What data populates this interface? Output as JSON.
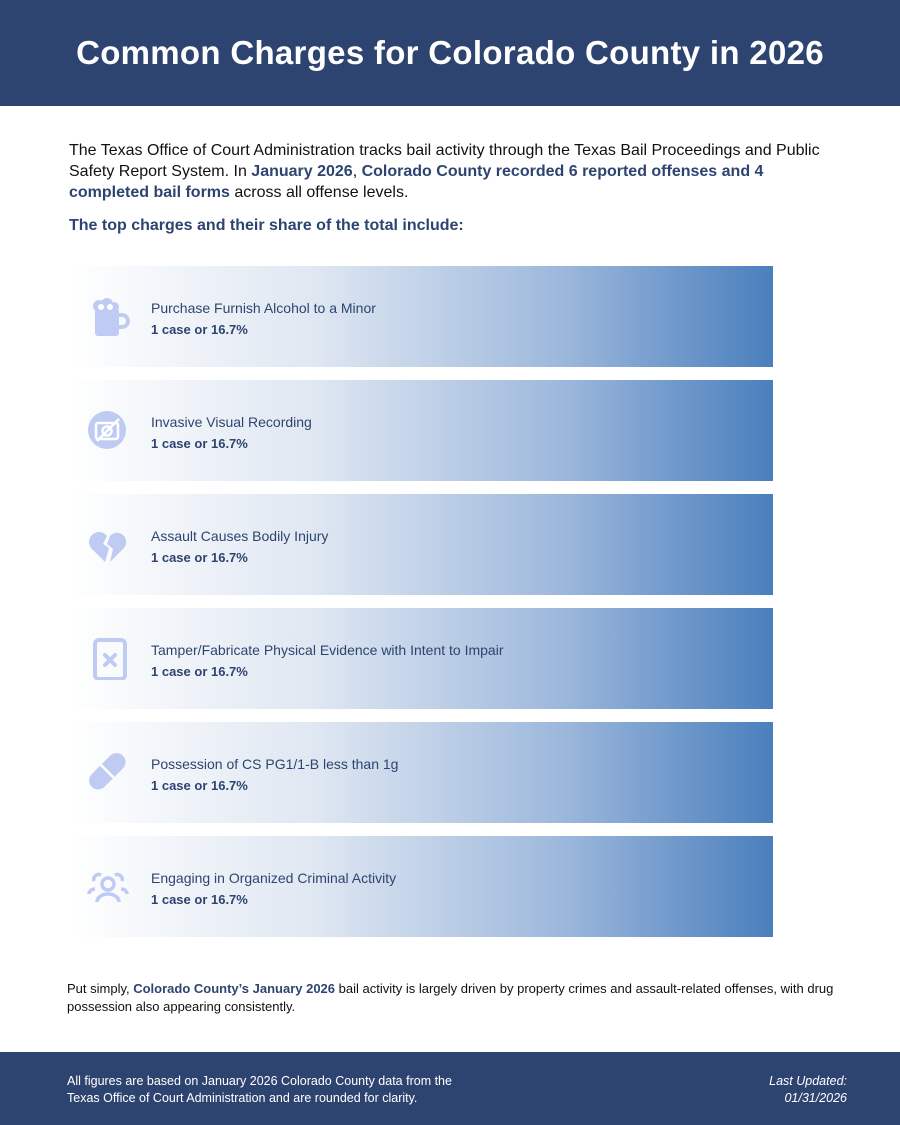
{
  "header": {
    "title": "Common Charges for Colorado County in 2026"
  },
  "intro": {
    "part1": "The Texas Office of Court Administration tracks bail activity through the Texas Bail Proceedings and Public Safety Report System. In ",
    "highlight1": "January 2026",
    "part2": ", ",
    "highlight2": "Colorado County recorded 6 reported offenses and 4 completed bail forms",
    "part3": " across all offense levels."
  },
  "subhead": "The top charges and their share of the total include:",
  "charges": [
    {
      "label": "Purchase Furnish Alcohol to a Minor",
      "value": "1 case or 16.7%",
      "icon": "beer-mug-icon"
    },
    {
      "label": "Invasive Visual Recording",
      "value": "1 case or 16.7%",
      "icon": "camera-slash-icon"
    },
    {
      "label": "Assault Causes Bodily Injury",
      "value": "1 case or 16.7%",
      "icon": "broken-heart-icon"
    },
    {
      "label": "Tamper/Fabricate Physical Evidence with Intent to Impair",
      "value": "1 case or 16.7%",
      "icon": "file-x-icon"
    },
    {
      "label": "Possession of CS PG1/1-B less than 1g",
      "value": "1 case or 16.7%",
      "icon": "pill-icon"
    },
    {
      "label": "Engaging in Organized Criminal Activity",
      "value": "1 case or 16.7%",
      "icon": "users-icon"
    }
  ],
  "closing": {
    "part1": "Put simply, ",
    "highlight": "Colorado County’s January 2026",
    "part2": " bail activity is largely driven by property crimes and assault-related offenses, with drug possession also appearing consistently."
  },
  "footer": {
    "note": "All figures are based on January 2026 Colorado County data from the Texas Office of Court Administration and are rounded for clarity.",
    "updated_label": "Last Updated:",
    "updated_date": "01/31/2026"
  },
  "colors": {
    "brand": "#2e4470",
    "bar_end": "#4a7fbd",
    "icon": "#bfcbf2"
  }
}
